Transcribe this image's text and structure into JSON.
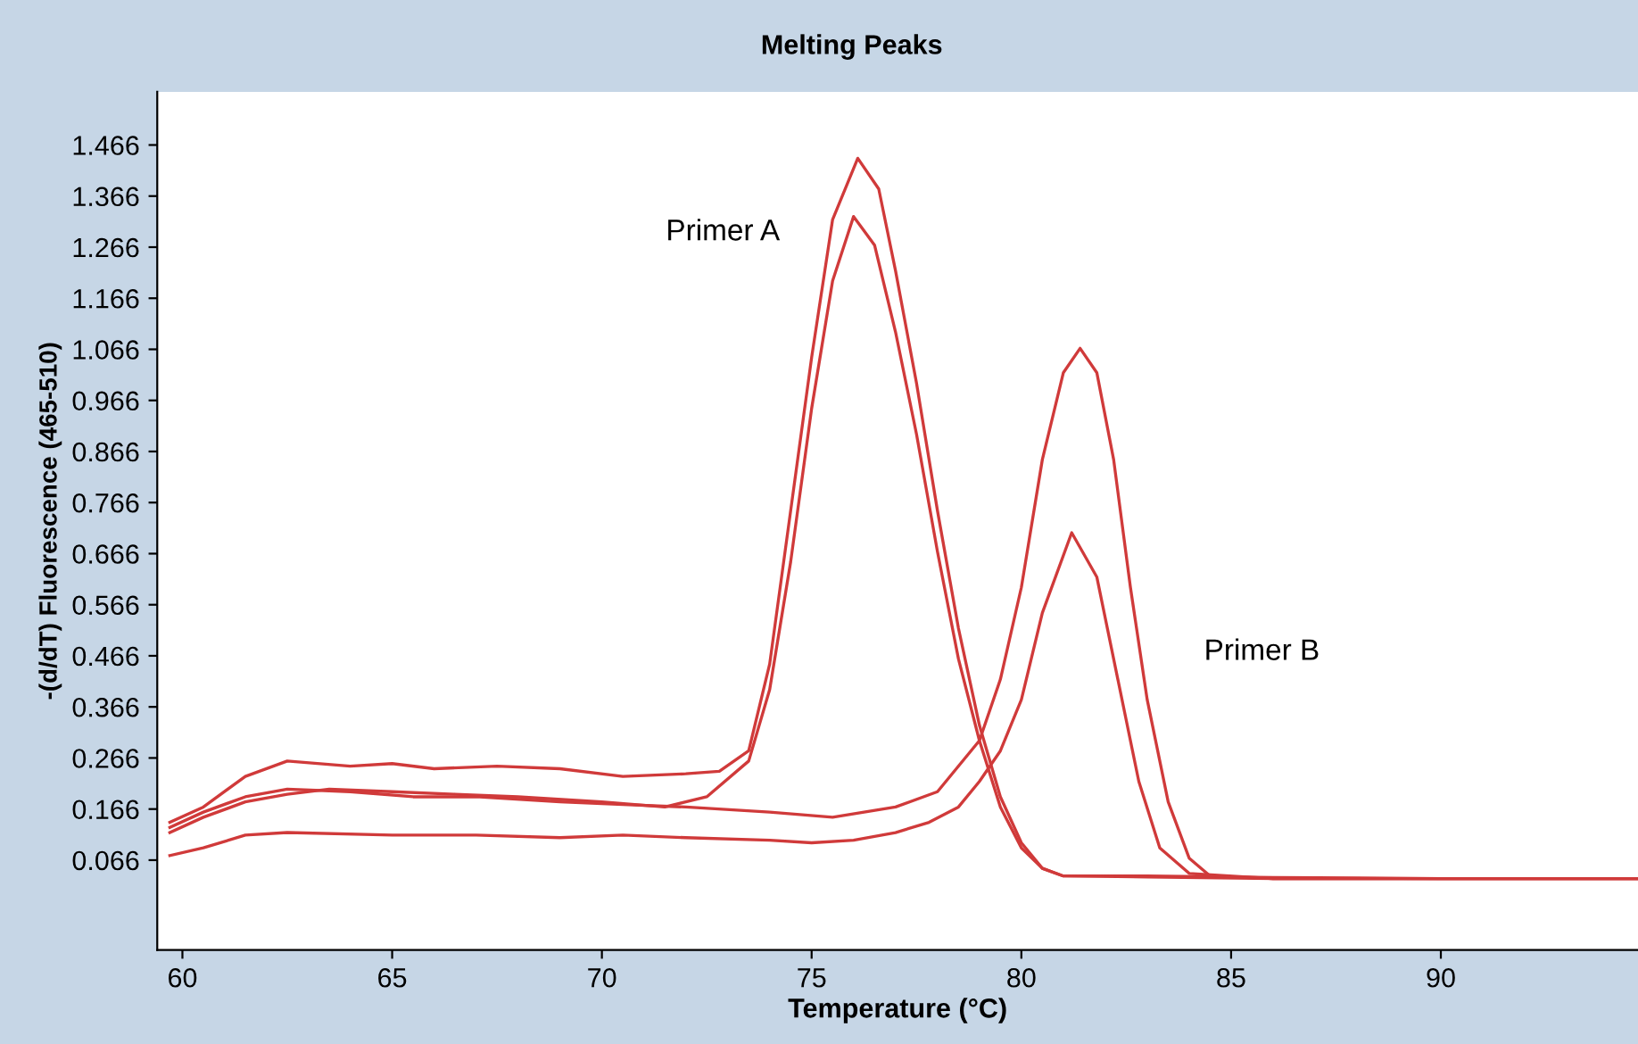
{
  "chart_data": {
    "type": "line",
    "title": "Melting Peaks",
    "xlabel": "Temperature (°C)",
    "ylabel": "-(d/dT) Fluorescence (465-510)",
    "xlim": [
      59.4,
      94.7
    ],
    "ylim": [
      -0.11,
      1.57
    ],
    "xticks": [
      60,
      65,
      70,
      75,
      80,
      85,
      90
    ],
    "yticks": [
      0.066,
      0.166,
      0.266,
      0.366,
      0.466,
      0.566,
      0.666,
      0.766,
      0.866,
      0.966,
      1.066,
      1.166,
      1.266,
      1.366,
      1.466
    ],
    "grid": false,
    "legend": false,
    "marker": "none",
    "line_style": "solid",
    "annotations": [
      "Primer A",
      "Primer B"
    ],
    "series": [
      {
        "color": "#d03a3a",
        "x": [
          59.7,
          60.5,
          61.5,
          62.5,
          64,
          65,
          66,
          67.5,
          69,
          70.5,
          72,
          72.8,
          73.5,
          74,
          74.5,
          75,
          75.5,
          76.1,
          76.6,
          77,
          77.5,
          78,
          78.5,
          79,
          79.5,
          80,
          80.5,
          81,
          83,
          86,
          90,
          94.7
        ],
        "values": [
          0.14,
          0.17,
          0.23,
          0.26,
          0.25,
          0.255,
          0.245,
          0.25,
          0.245,
          0.23,
          0.235,
          0.24,
          0.28,
          0.45,
          0.75,
          1.05,
          1.32,
          1.44,
          1.38,
          1.22,
          1.0,
          0.75,
          0.52,
          0.33,
          0.19,
          0.1,
          0.05,
          0.035,
          0.035,
          0.032,
          0.03,
          0.03
        ]
      },
      {
        "color": "#d03a3a",
        "x": [
          59.7,
          60.5,
          61.5,
          62.5,
          63.5,
          65,
          66.5,
          68,
          70,
          71.5,
          72.5,
          73.5,
          74,
          74.5,
          75,
          75.5,
          76,
          76.5,
          77,
          77.5,
          78,
          78.5,
          79,
          79.5,
          80,
          80.5,
          81,
          83,
          86,
          90,
          94.7
        ],
        "values": [
          0.12,
          0.15,
          0.18,
          0.195,
          0.205,
          0.2,
          0.195,
          0.19,
          0.18,
          0.17,
          0.19,
          0.26,
          0.4,
          0.65,
          0.95,
          1.2,
          1.326,
          1.27,
          1.1,
          0.9,
          0.67,
          0.46,
          0.3,
          0.17,
          0.09,
          0.05,
          0.035,
          0.033,
          0.03,
          0.03,
          0.03
        ]
      },
      {
        "color": "#d03a3a",
        "x": [
          59.7,
          60.5,
          61.5,
          62.5,
          64,
          65.5,
          67,
          69,
          70.5,
          72,
          74,
          75.5,
          77,
          78,
          79,
          79.5,
          80,
          80.5,
          81,
          81.4,
          81.8,
          82.2,
          82.6,
          83,
          83.5,
          84,
          84.5,
          86,
          90,
          94.7
        ],
        "values": [
          0.13,
          0.16,
          0.19,
          0.205,
          0.2,
          0.19,
          0.19,
          0.18,
          0.175,
          0.17,
          0.16,
          0.15,
          0.17,
          0.2,
          0.3,
          0.42,
          0.6,
          0.85,
          1.02,
          1.068,
          1.02,
          0.85,
          0.6,
          0.38,
          0.18,
          0.07,
          0.035,
          0.03,
          0.03,
          0.03
        ]
      },
      {
        "color": "#d03a3a",
        "x": [
          59.7,
          60.5,
          61.5,
          62.5,
          65,
          67,
          69,
          70.5,
          72,
          74,
          75,
          76,
          77,
          77.8,
          78.5,
          79,
          79.5,
          80,
          80.5,
          81.2,
          81.8,
          82.3,
          82.8,
          83.3,
          84,
          86,
          90,
          94.7
        ],
        "values": [
          0.075,
          0.09,
          0.115,
          0.12,
          0.115,
          0.115,
          0.11,
          0.115,
          0.11,
          0.105,
          0.1,
          0.105,
          0.12,
          0.14,
          0.17,
          0.22,
          0.28,
          0.38,
          0.55,
          0.707,
          0.62,
          0.42,
          0.22,
          0.09,
          0.04,
          0.03,
          0.03,
          0.03
        ]
      }
    ]
  }
}
